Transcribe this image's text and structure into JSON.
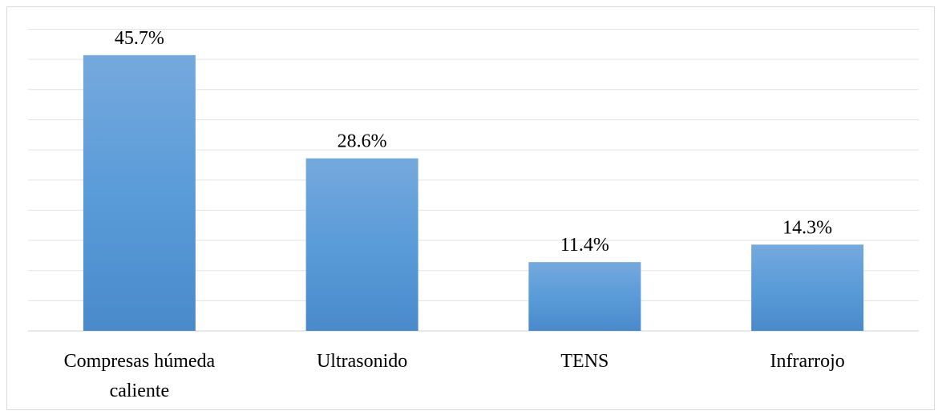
{
  "chart_data": {
    "type": "bar",
    "categories": [
      "Compresas húmeda caliente",
      "Ultrasonido",
      "TENS",
      "Infrarrojo"
    ],
    "values": [
      45.7,
      28.6,
      11.4,
      14.3
    ],
    "value_labels": [
      "45.7%",
      "28.6%",
      "11.4%",
      "14.3%"
    ],
    "color": "#5b9bd5",
    "ylim": [
      0,
      50
    ],
    "yticks": [
      0,
      5,
      10,
      15,
      20,
      25,
      30,
      35,
      40,
      45,
      50
    ],
    "grid": true
  }
}
